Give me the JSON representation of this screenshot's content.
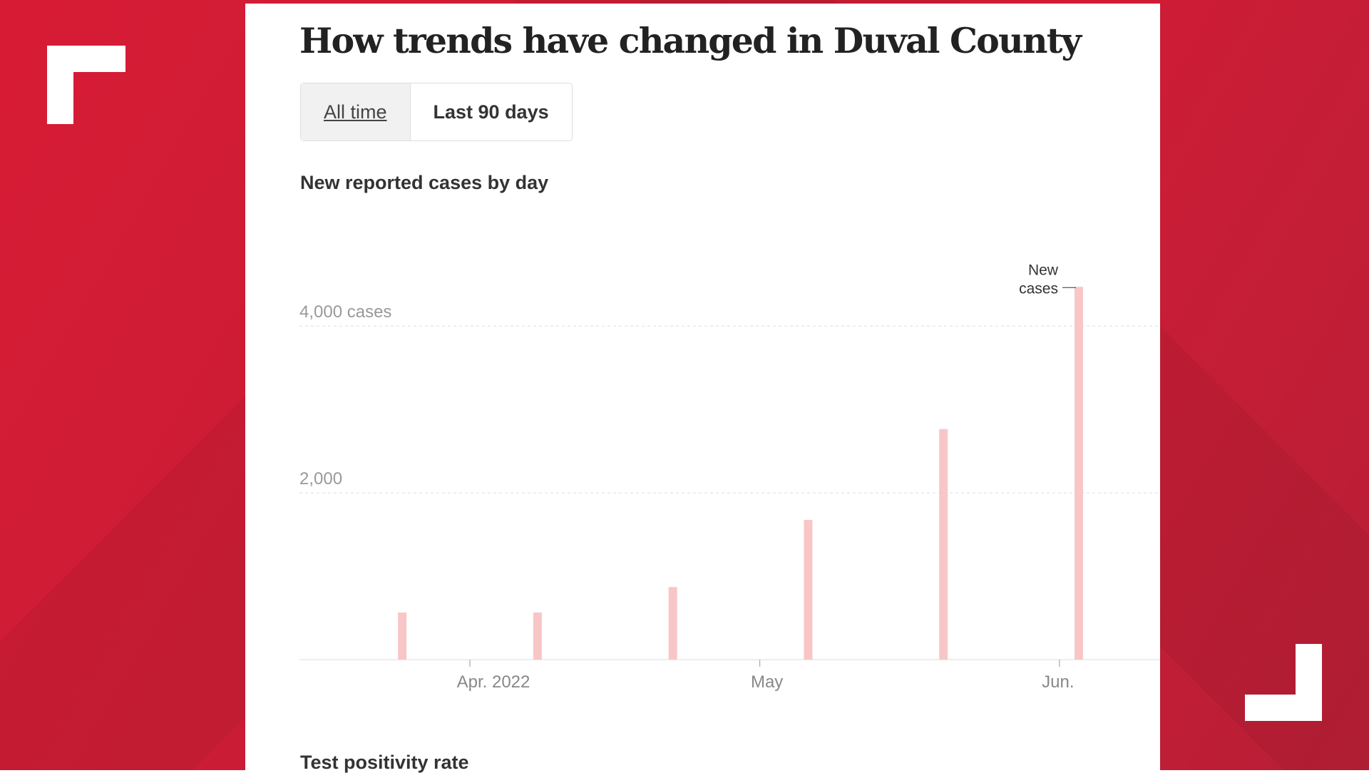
{
  "header": {
    "title": "How trends have changed in Duval County"
  },
  "toggle": {
    "all_time": "All time",
    "last_90": "Last 90 days",
    "selected": "Last 90 days"
  },
  "colors": {
    "bar": "#f8c6c6",
    "background": "#d31b35",
    "grid": "#dddddd"
  },
  "chart_data": {
    "type": "bar",
    "title": "New reported cases by day",
    "x": [
      "2022-03-25",
      "2022-04-08",
      "2022-04-22",
      "2022-05-06",
      "2022-05-20",
      "2022-06-03"
    ],
    "values": [
      565,
      565,
      870,
      1675,
      2765,
      4470
    ],
    "ylim": [
      0,
      4500
    ],
    "yticks": [
      {
        "value": 2000,
        "label": "2,000"
      },
      {
        "value": 4000,
        "label": "4,000 cases"
      }
    ],
    "xticks": [
      {
        "date": "2022-04-01",
        "label": "Apr. 2022"
      },
      {
        "date": "2022-05-01",
        "label": "May"
      },
      {
        "date": "2022-06-01",
        "label": "Jun."
      }
    ],
    "annotation": {
      "line1": "New",
      "line2": "cases"
    },
    "grid": true
  },
  "next_section": {
    "title": "Test positivity rate"
  }
}
